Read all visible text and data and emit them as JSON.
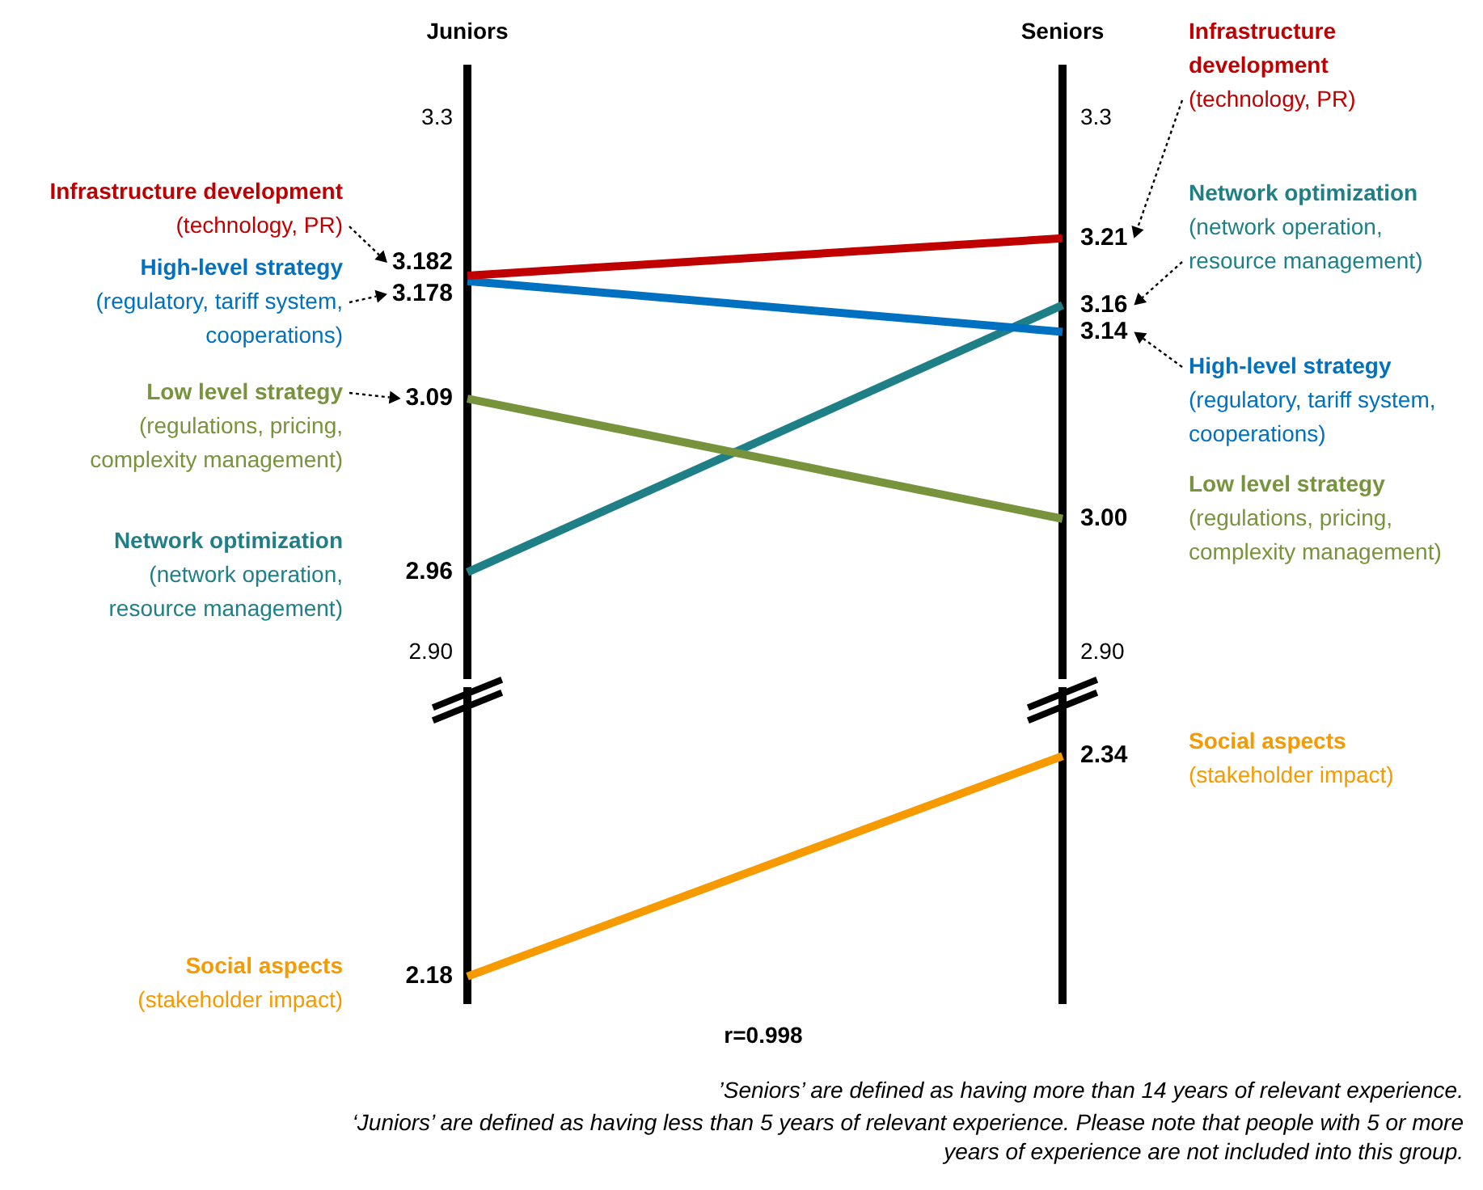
{
  "chart_data": [
    {
      "type": "line",
      "categories": [
        "Juniors",
        "Seniors"
      ],
      "marker": "none",
      "grid": "x",
      "ylim": [
        2.88,
        3.34
      ],
      "yticks": [
        3.3,
        {
          "value": 2.9,
          "label": "2.90"
        }
      ],
      "y2lim": [
        2.88,
        3.34
      ],
      "y2ticks": [
        3.3,
        {
          "value": 2.9,
          "label": "2.90"
        }
      ],
      "series": [
        {
          "name": "Infrastructure development",
          "color": "#c00000",
          "values": [
            3.182,
            3.21
          ],
          "value_labels": [
            "3.182",
            "3.21"
          ]
        },
        {
          "name": "High-level strategy",
          "color": "#0070c0",
          "values": [
            3.178,
            3.14
          ],
          "value_labels": [
            "3.178",
            "3.14"
          ]
        },
        {
          "name": "Low level strategy",
          "color": "#77933c",
          "values": [
            3.09,
            3.0
          ],
          "value_labels": [
            "3.09",
            "3.00"
          ]
        },
        {
          "name": "Network optimization",
          "color": "#1f7f86",
          "values": [
            2.96,
            3.16
          ],
          "value_labels": [
            "2.96",
            "3.16"
          ]
        }
      ],
      "annotations": [
        "(technology, PR)",
        "(technology, PR)",
        "(regulatory, tariff system, cooperations)",
        "(regulatory, tariff system, cooperations)",
        "(regulations, pricing, complexity management)",
        "(regulations, pricing, complexity management)",
        "(network operation, resource management)",
        "(network operation, resource management)"
      ]
    },
    {
      "type": "line",
      "categories": [
        null,
        null
      ],
      "marker": "none",
      "grid": "x",
      "ylim": [
        2.16,
        2.39
      ],
      "series": [
        {
          "name": "Social aspects",
          "color": "#f79a00",
          "values": [
            2.18,
            2.34
          ],
          "value_labels": [
            "2.18",
            "2.34"
          ]
        }
      ],
      "annotations": [
        "(stakeholder impact)",
        "(stakeholder impact)",
        "r=0.998",
        "’Seniors’ are defined as having more than 14 years of relevant experience.",
        "‘Juniors’ are defined as having less than 5 years of relevant experience. Please note that people with 5 or more years of experience are not included into this group."
      ]
    }
  ]
}
